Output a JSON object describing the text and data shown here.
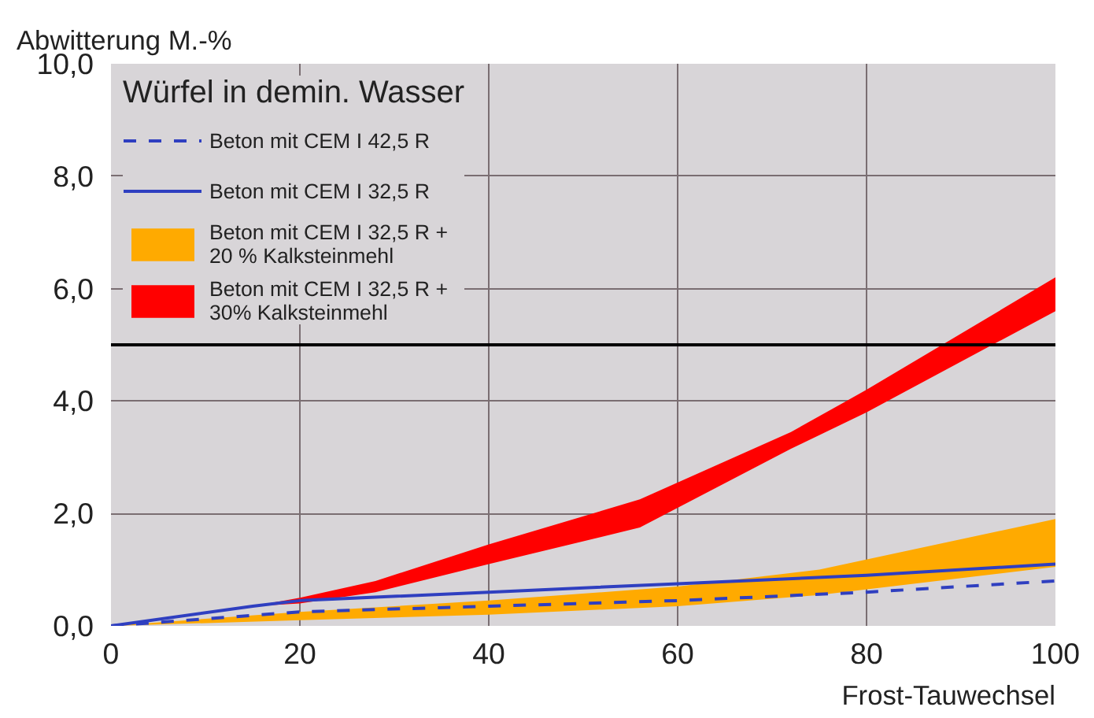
{
  "chart_data": {
    "type": "line",
    "ylabel": "Abwitterung M.-%",
    "xlabel": "Frost-Tauwechsel",
    "legend_title": "Würfel in demin. Wasser",
    "xlim": [
      0,
      100
    ],
    "xticks": [
      0,
      20,
      40,
      60,
      80,
      100
    ],
    "ylim": [
      0,
      10
    ],
    "yticks": [
      {
        "value": 0,
        "label": "0,0"
      },
      {
        "value": 2,
        "label": "2,0"
      },
      {
        "value": 4,
        "label": "4,0"
      },
      {
        "value": 6,
        "label": "6,0"
      },
      {
        "value": 8,
        "label": "8,0"
      },
      {
        "value": 10,
        "label": "10,0"
      }
    ],
    "grid": true,
    "legend": "top left",
    "ref_lines": [
      {
        "axis": "y",
        "value": 5,
        "color": "#000000"
      }
    ],
    "series": [
      {
        "name": "Beton mit CEM I 42,5 R",
        "line_style": "dashed",
        "color": "#2f3fc0",
        "x": [
          0,
          20,
          40,
          60,
          80,
          100
        ],
        "values": [
          0,
          0.25,
          0.35,
          0.45,
          0.6,
          0.8
        ]
      },
      {
        "name": "Beton mit CEM I 32,5 R",
        "line_style": "solid",
        "color": "#2f3fc0",
        "x": [
          0,
          15,
          20,
          40,
          60,
          80,
          100
        ],
        "values": [
          0,
          0.35,
          0.45,
          0.6,
          0.75,
          0.9,
          1.1
        ]
      },
      {
        "name": "Beton mit CEM I 32,5 R +\n20 % Kalksteinmehl",
        "type": "area",
        "color": "#ffaa00",
        "x": [
          0,
          20,
          40,
          60,
          75,
          100
        ],
        "lower": [
          0,
          0.1,
          0.2,
          0.35,
          0.55,
          1.05
        ],
        "upper": [
          0,
          0.25,
          0.45,
          0.7,
          1.0,
          1.9
        ],
        "values": [
          null,
          null,
          null,
          null,
          null,
          null
        ]
      },
      {
        "name": "Beton mit CEM I 32,5 R +\n30% Kalksteinmehl",
        "type": "area",
        "color": "#ff0000",
        "x": [
          15,
          20,
          28,
          40,
          56,
          72,
          80,
          100
        ],
        "lower": [
          0.35,
          0.4,
          0.6,
          1.1,
          1.75,
          3.15,
          3.8,
          5.6
        ],
        "upper": [
          0.35,
          0.5,
          0.8,
          1.45,
          2.25,
          3.45,
          4.2,
          6.2
        ],
        "values": [
          null,
          null,
          null,
          null,
          null,
          null,
          null,
          null
        ]
      }
    ]
  }
}
